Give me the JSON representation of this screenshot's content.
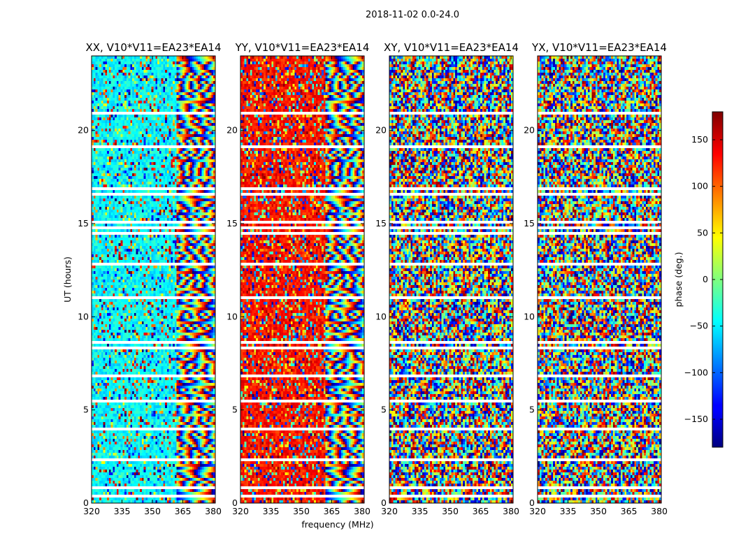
{
  "page_title": "2018-11-02 0.0-24.0",
  "chart_data": {
    "type": "heatmap",
    "suptitle": "2018-11-02 0.0-24.0",
    "xlabel": "frequency (MHz)",
    "ylabel": "UT (hours)",
    "xlim": [
      320,
      381
    ],
    "ylim": [
      0,
      24
    ],
    "xticks": [
      320,
      335,
      350,
      365,
      380
    ],
    "yticks": [
      0,
      5,
      10,
      15,
      20
    ],
    "panels": [
      {
        "title": "XX, V10*V11=EA23*EA14",
        "pol": "XX",
        "base_phase": -45,
        "noise": 0.45
      },
      {
        "title": "YY, V10*V11=EA23*EA14",
        "pol": "YY",
        "base_phase": 130,
        "noise": 0.55
      },
      {
        "title": "XY, V10*V11=EA23*EA14",
        "pol": "XY",
        "base_phase": 0,
        "noise": 1.0
      },
      {
        "title": "YX, V10*V11=EA23*EA14",
        "pol": "YX",
        "base_phase": 0,
        "noise": 1.0
      }
    ],
    "colorbar": {
      "label": "phase (deg.)",
      "range": [
        -180,
        180
      ],
      "ticks": [
        -150,
        -100,
        -50,
        0,
        50,
        100,
        150
      ],
      "tick_labels": [
        "−150",
        "−100",
        "−50",
        "0",
        "50",
        "100",
        "150"
      ],
      "colormap": "jet"
    }
  }
}
